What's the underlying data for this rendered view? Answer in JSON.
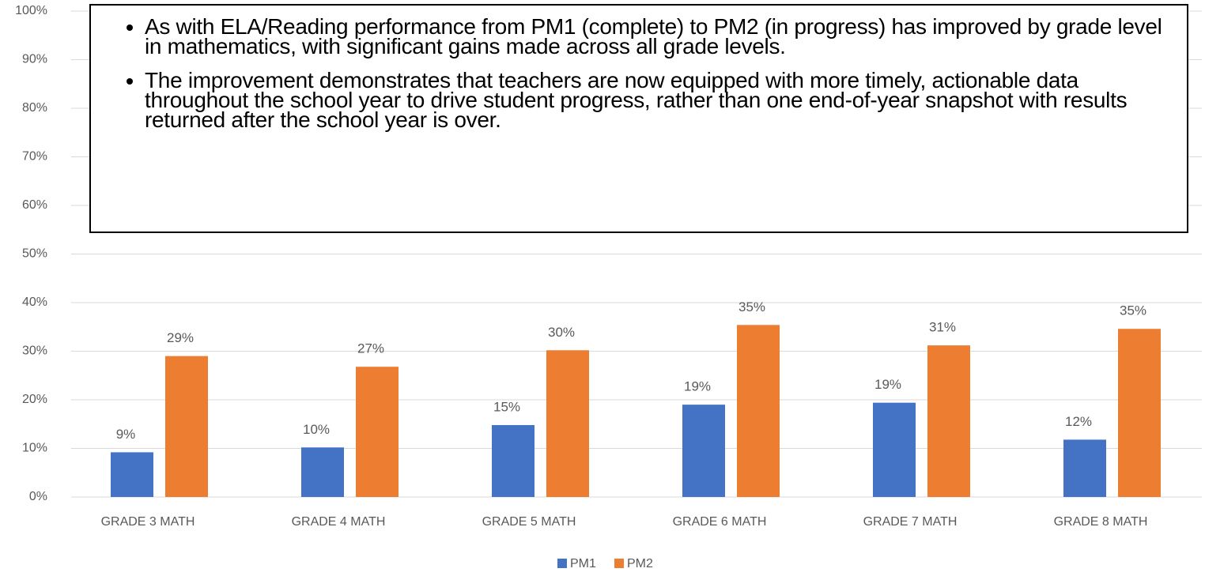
{
  "chart_data": {
    "type": "bar",
    "categories": [
      "GRADE 3 MATH",
      "GRADE 4 MATH",
      "GRADE 5 MATH",
      "GRADE 6 MATH",
      "GRADE 7 MATH",
      "GRADE 8 MATH"
    ],
    "series": [
      {
        "name": "PM1",
        "color": "#4472c4",
        "values": [
          9.2,
          10.2,
          14.8,
          19,
          19.4,
          11.8
        ],
        "value_labels": [
          "9%",
          "10%",
          "15%",
          "19%",
          "19%",
          "12%"
        ]
      },
      {
        "name": "PM2",
        "color": "#ed7d31",
        "values": [
          29,
          26.8,
          30.2,
          35.4,
          31.2,
          34.6
        ],
        "value_labels": [
          "29%",
          "27%",
          "30%",
          "35%",
          "31%",
          "35%"
        ]
      }
    ],
    "ylim": [
      0,
      100
    ],
    "yticks": [
      {
        "value": 0,
        "label": "0%"
      },
      {
        "value": 10,
        "label": "10%"
      },
      {
        "value": 20,
        "label": "20%"
      },
      {
        "value": 30,
        "label": "30%"
      },
      {
        "value": 40,
        "label": "40%"
      },
      {
        "value": 50,
        "label": "50%"
      },
      {
        "value": 60,
        "label": "60%"
      },
      {
        "value": 70,
        "label": "70%"
      },
      {
        "value": 80,
        "label": "80%"
      },
      {
        "value": 90,
        "label": "90%"
      },
      {
        "value": 100,
        "label": "100%"
      }
    ],
    "grid": true,
    "legend": "bottom",
    "annotations": [
      "As with ELA/Reading performance from PM1 (complete) to PM2 (in progress) has improved by grade level in mathematics, with significant gains made across all grade levels.",
      "The improvement demonstrates that teachers are now equipped with more timely, actionable data throughout the school year to drive student progress, rather than one end-of-year snapshot with results returned after the school year is over."
    ]
  }
}
